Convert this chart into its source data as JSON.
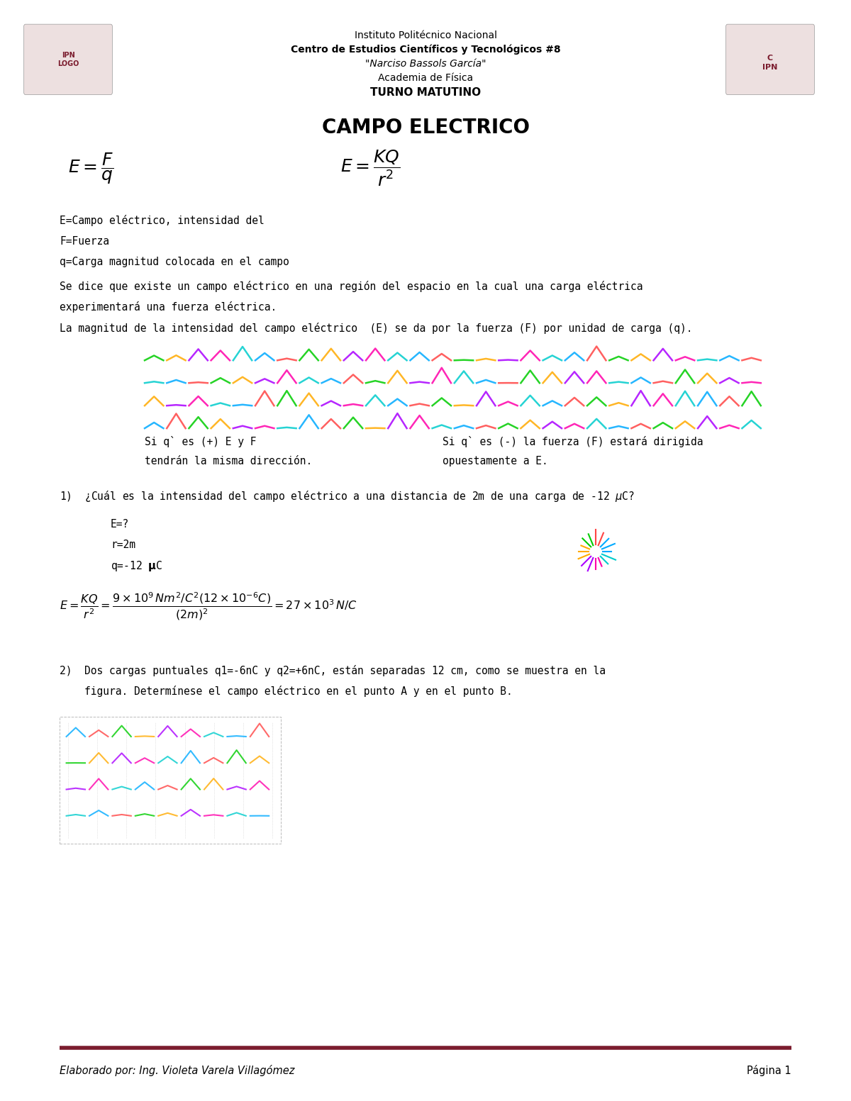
{
  "title": "CAMPO ELECTRICO",
  "header_line1": "Instituto Politécnico Nacional",
  "header_line2": "Centro de Estudios Científicos y Tecnológicos #8",
  "header_line3": "\"Narciso Bassols García\"",
  "header_line4": "Academia de Física",
  "header_line5": "TURNO MATUTINO",
  "definitions": [
    "E=Campo eléctrico, intensidad del",
    "F=Fuerza",
    "q=Carga magnitud colocada en el campo"
  ],
  "para1_line1": "Se dice que existe un campo eléctrico en una región del espacio en la cual una carga eléctrica",
  "para1_line2": "experimentará una fuerza eléctrica.",
  "para1_line3": "La magnitud de la intensidad del campo eléctrico  (E) se da por la fuerza (F) por unidad de carga (q).",
  "caption_left1": "Si q` es (+) E y F",
  "caption_left2": "tendrán la misma dirección.",
  "caption_right1": "Si q` es (-) la fuerza (F) estará dirigida",
  "caption_right2": "opuestamente a E.",
  "p1_text": "1)  ¿Cuál es la intensidad del campo eléctrico a una distancia de 2m de una carga de -12 ",
  "p1_given1": "E=?",
  "p1_given2": "r=2m",
  "p1_given3": "q=-12 ",
  "p2_line1": "2)  Dos cargas puntuales q1=-6nC y q2=+6nC, están separadas 12 cm, como se muestra en la",
  "p2_line2": "    figura. Determínese el campo eléctrico en el punto A y en el punto B.",
  "footer_left": "Elaborado por: Ing. Violeta Varela Villagómez",
  "footer_right": "Página 1",
  "dark_red": "#7B1C2E",
  "text_color": "#000000",
  "bg_color": "#FFFFFF",
  "page_width": 12.0,
  "page_height": 15.53
}
